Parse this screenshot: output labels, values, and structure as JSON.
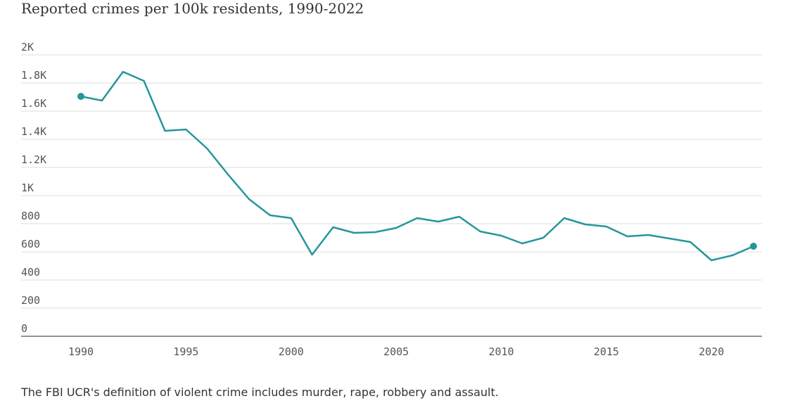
{
  "title": "Reported crimes per 100k residents, 1990-2022",
  "note": "The FBI UCR's definition of violent crime includes murder, rape, robbery and assault.",
  "colors": {
    "line": "#25969a",
    "grid": "#dddddd",
    "axis": "#555555",
    "text": "#333333"
  },
  "chart_data": {
    "type": "line",
    "x": [
      1990,
      1991,
      1992,
      1993,
      1994,
      1995,
      1996,
      1997,
      1998,
      1999,
      2000,
      2001,
      2002,
      2003,
      2004,
      2005,
      2006,
      2007,
      2008,
      2009,
      2010,
      2011,
      2012,
      2013,
      2014,
      2015,
      2016,
      2017,
      2018,
      2019,
      2020,
      2021,
      2022
    ],
    "series": [
      {
        "values": [
          1705,
          1675,
          1880,
          1815,
          1460,
          1470,
          1335,
          1150,
          975,
          860,
          840,
          580,
          775,
          735,
          740,
          770,
          840,
          815,
          850,
          745,
          715,
          660,
          700,
          840,
          795,
          780,
          710,
          720,
          695,
          670,
          540,
          575,
          640
        ]
      }
    ],
    "ylim": [
      0,
      2000
    ],
    "yticks": [
      0,
      200,
      400,
      600,
      800,
      1000,
      1200,
      1400,
      1600,
      1800,
      2000
    ],
    "ytick_labels": [
      "0",
      "200",
      "400",
      "600",
      "800",
      "1K",
      "1.2K",
      "1.4K",
      "1.6K",
      "1.8K",
      "2K"
    ],
    "xticks": [
      1990,
      1995,
      2000,
      2005,
      2010,
      2015,
      2020
    ],
    "xtick_labels": [
      "1990",
      "1995",
      "2000",
      "2005",
      "2010",
      "2015",
      "2020"
    ],
    "xlim": [
      1990,
      2022
    ],
    "endpoint_markers": true,
    "grid": true
  }
}
